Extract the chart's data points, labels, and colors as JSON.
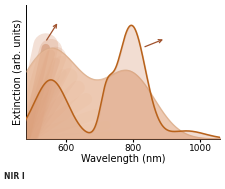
{
  "xlabel": "Wavelength (nm)",
  "ylabel": "Extinction (arb. units)",
  "xlim": [
    480,
    1060
  ],
  "ylim": [
    0,
    1.18
  ],
  "xticks": [
    600,
    800,
    1000
  ],
  "background_color": "#ffffff",
  "curve_color": "#b8621a",
  "fill_color_broad": "#e8b898",
  "fill_color_narrow": "#d4906a",
  "nir_label": "NIR I",
  "fontsize_axis": 7,
  "fontsize_tick": 6.5,
  "broad_peaks": [
    {
      "mu": 555,
      "sigma": 95,
      "amp": 0.82
    },
    {
      "mu": 790,
      "sigma": 75,
      "amp": 0.58
    }
  ],
  "narrow_peaks": [
    {
      "mu": 720,
      "sigma": 18,
      "amp": 0.3
    },
    {
      "mu": 795,
      "sigma": 42,
      "amp": 1.0
    },
    {
      "mu": 960,
      "sigma": 55,
      "amp": 0.07
    }
  ],
  "beam_color": "#d4906a",
  "beam_alpha_max": 0.55,
  "arrow1_color": "#a0522d",
  "arrow2_color": "#a0522d"
}
